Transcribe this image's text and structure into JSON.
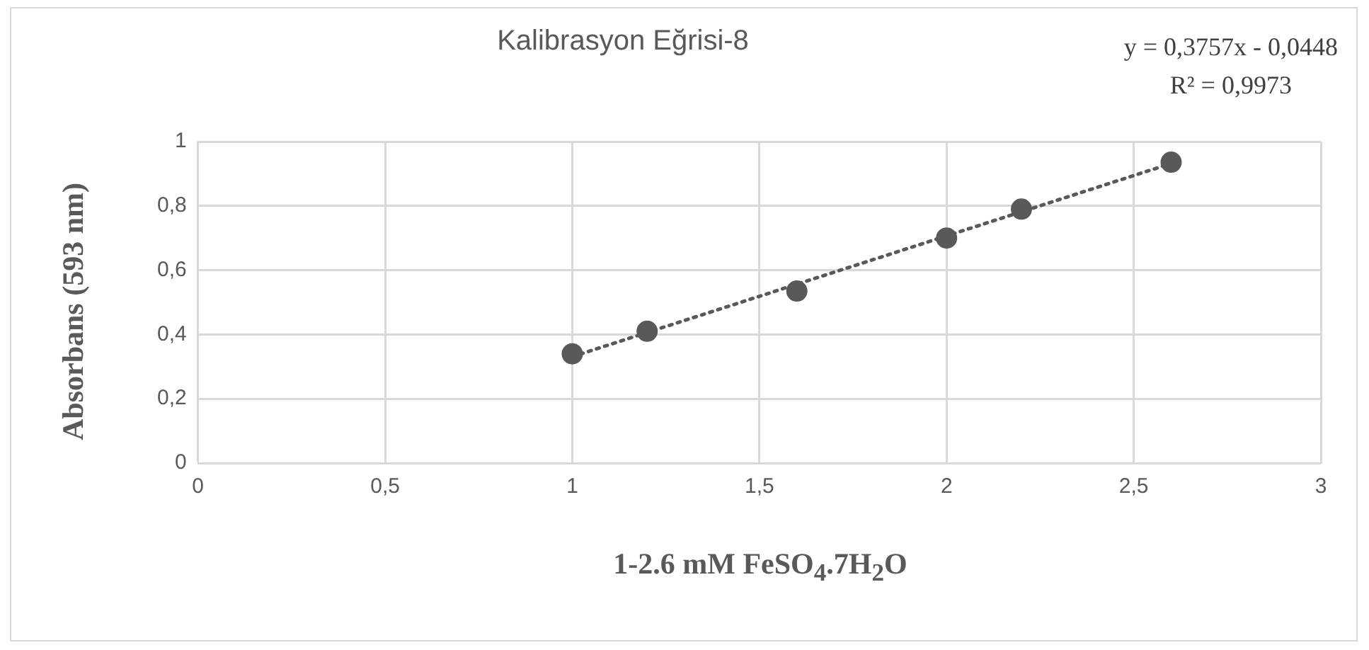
{
  "chart_data": {
    "type": "scatter",
    "title": "Kalibrasyon Eğrisi-8",
    "xlabel": "1-2.6 mM FeSO$_{4}$.7H$_{2}$O",
    "ylabel": "Absorbans (593 nm)",
    "annotations": [
      "y = 0,3757x - 0,0448",
      "R² = 0,9973"
    ],
    "x": [
      1,
      1.2,
      1.6,
      2,
      2.2,
      2.6
    ],
    "series": [
      {
        "color": "#595959",
        "values": [
          0.34,
          0.41,
          0.535,
          0.7,
          0.79,
          0.936
        ],
        "marker": "circle"
      },
      {
        "type": "line",
        "color": "#595959",
        "x": [
          1,
          2.6
        ],
        "values": [
          0.331,
          0.932
        ],
        "marker": "none",
        "line_style": "dotted"
      }
    ],
    "xlim": [
      0,
      3
    ],
    "xticks": [
      0,
      {
        "value": 0.5,
        "label": "0,5"
      },
      1,
      {
        "value": 1.5,
        "label": "1,5"
      },
      2,
      {
        "value": 2.5,
        "label": "2,5"
      },
      3
    ],
    "ylim": [
      0,
      1
    ],
    "yticks": [
      0,
      {
        "value": 0.2,
        "label": "0,2"
      },
      {
        "value": 0.4,
        "label": "0,4"
      },
      {
        "value": 0.6,
        "label": "0,6"
      },
      {
        "value": 0.8,
        "label": "0,8"
      },
      1
    ],
    "grid": true,
    "legend": false
  }
}
